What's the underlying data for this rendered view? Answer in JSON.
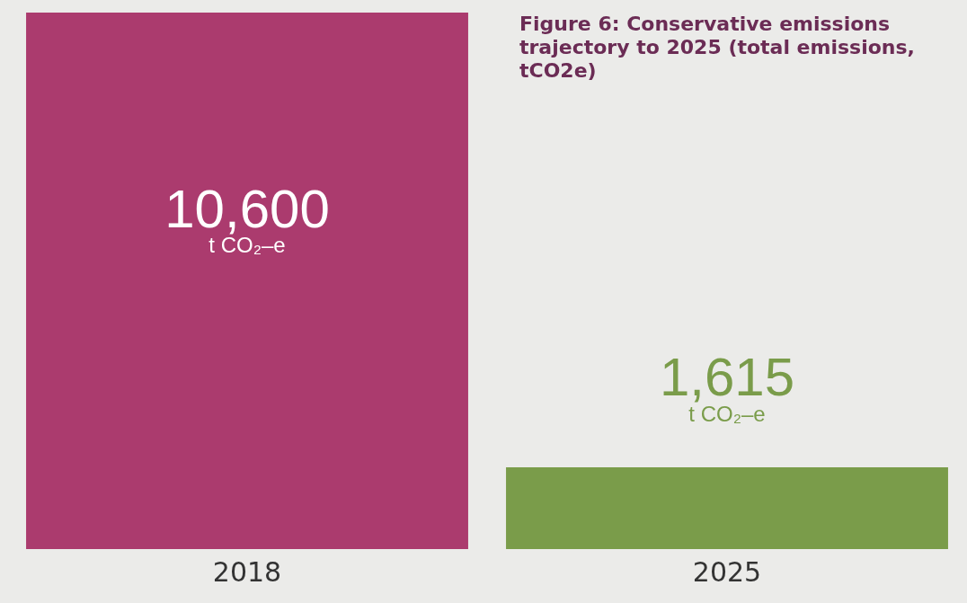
{
  "chart_data": {
    "type": "bar",
    "title": "Figure 6: Conservative emissions trajectory to 2025 (total emissions, tCO2e)",
    "categories": [
      "2018",
      "2025"
    ],
    "values": [
      10600,
      1615
    ],
    "colors": [
      "#ab3b6e",
      "#7a9c4a"
    ],
    "value_labels": [
      "10,600 t CO₂–e",
      "1,615 t CO₂–e"
    ],
    "legend": false,
    "grid": false
  }
}
